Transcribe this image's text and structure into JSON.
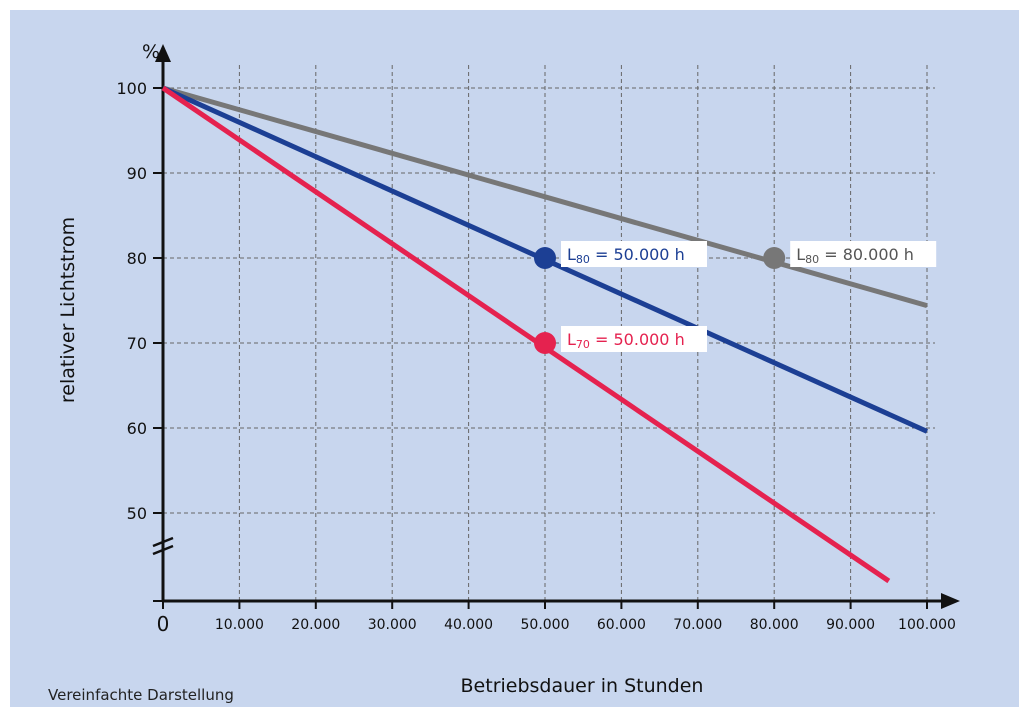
{
  "chart_data": {
    "type": "line",
    "ylabel": "relativer Lichtstrom",
    "yunit": "%",
    "xlabel": "Betriebsdauer in Stunden",
    "xticks": [
      "0",
      "10.000",
      "20.000",
      "30.000",
      "40.000",
      "50.000",
      "60.000",
      "70.000",
      "80.000",
      "90.000",
      "100.000"
    ],
    "yticks": [
      "50",
      "60",
      "70",
      "80",
      "90",
      "100"
    ],
    "xlim": [
      0,
      100000
    ],
    "ylim": [
      50,
      100
    ],
    "y_axis_break": true,
    "grid": true,
    "series": [
      {
        "x": [
          0,
          100000
        ],
        "y": [
          100,
          74.4
        ],
        "color": "#777777"
      },
      {
        "x": [
          0,
          100000
        ],
        "y": [
          100,
          59.6
        ],
        "color": "#1c3f94"
      },
      {
        "x": [
          0,
          95000
        ],
        "y": [
          100,
          42
        ],
        "color": "#e5224f"
      }
    ],
    "annotations": [
      {
        "x": 50000,
        "y": 80,
        "label_main": "L",
        "label_sub": "80",
        "label_rest": " = 50.000 h",
        "color": "#1c3f94",
        "text_color": "#1c3f94"
      },
      {
        "x": 80000,
        "y": 80,
        "label_main": "L",
        "label_sub": "80",
        "label_rest": " = 80.000 h",
        "color": "#777777",
        "text_color": "#555555"
      },
      {
        "x": 50000,
        "y": 70,
        "label_main": "L",
        "label_sub": "70",
        "label_rest": " = 50.000 h",
        "color": "#e5224f",
        "text_color": "#e5224f"
      }
    ]
  },
  "footnote": "Vereinfachte Darstellung"
}
